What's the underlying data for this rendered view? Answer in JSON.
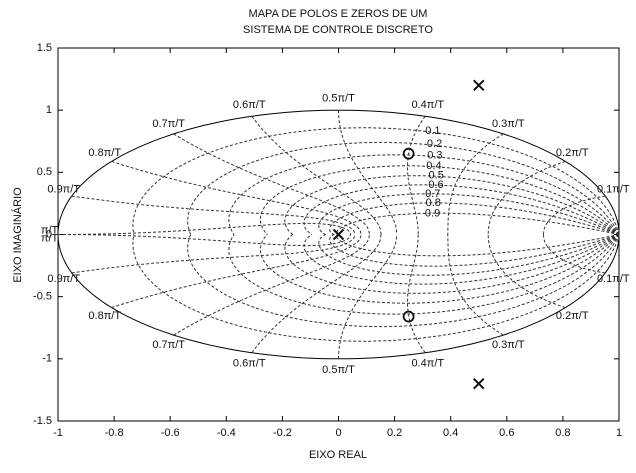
{
  "chart_data": {
    "type": "pzmap",
    "title": "MAPA DE POLOS E ZEROS DE UM",
    "subtitle": "SISTEMA DE CONTROLE DISCRETO",
    "x_label": "EIXO REAL",
    "y_label": "EIXO IMAGINÁRIO",
    "xlim": [
      -1,
      1
    ],
    "ylim": [
      -1.5,
      1.5
    ],
    "xticks": [
      -1,
      -0.8,
      -0.6,
      -0.4,
      -0.2,
      0,
      0.2,
      0.4,
      0.6,
      0.8,
      1
    ],
    "yticks": [
      -1.5,
      -1,
      -0.5,
      0,
      0.5,
      1,
      1.5
    ],
    "zeta": [
      0.1,
      0.2,
      0.3,
      0.4,
      0.5,
      0.6,
      0.7,
      0.8,
      0.9
    ],
    "wn": [
      {
        "value": 0.1,
        "label": "0.1π/T"
      },
      {
        "value": 0.2,
        "label": "0.2π/T"
      },
      {
        "value": 0.3,
        "label": "0.3π/T"
      },
      {
        "value": 0.4,
        "label": "0.4π/T"
      },
      {
        "value": 0.5,
        "label": "0.5π/T"
      },
      {
        "value": 0.6,
        "label": "0.6π/T"
      },
      {
        "value": 0.7,
        "label": "0.7π/T"
      },
      {
        "value": 0.8,
        "label": "0.8π/T"
      },
      {
        "value": 0.9,
        "label": "0.9π/T"
      },
      {
        "value": 1,
        "label": "π/T"
      }
    ],
    "series": [
      {
        "marker": "x",
        "color": "#111111",
        "x": [
          0,
          0.5,
          0.5
        ],
        "values": [
          0,
          1.2,
          -1.2
        ]
      },
      {
        "marker": "o",
        "color": "#111111",
        "x": [
          0.25,
          0.25
        ],
        "values": [
          0.65,
          -0.66
        ]
      }
    ]
  }
}
